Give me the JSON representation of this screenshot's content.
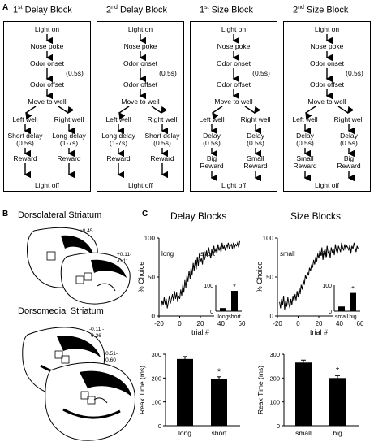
{
  "panel_a": {
    "letter": "A",
    "blocks": [
      {
        "num": "1",
        "sup": "st",
        "title": "Delay Block",
        "common": [
          "Light on",
          "Nose poke",
          "Odor onset",
          "(0.5s)",
          "Odor offset",
          "Move to well"
        ],
        "left": [
          "Left well",
          "Short delay",
          "(0.5s)",
          "Reward"
        ],
        "right": [
          "Right well",
          "Long delay",
          "(1-7s)",
          "Reward"
        ],
        "end": "Light off"
      },
      {
        "num": "2",
        "sup": "nd",
        "title": "Delay Block",
        "common": [
          "Light on",
          "Nose poke",
          "Odor onset",
          "(0.5s)",
          "Odor offset",
          "Move to well"
        ],
        "left": [
          "Left well",
          "Long delay",
          "(1-7s)",
          "Reward"
        ],
        "right": [
          "Right well",
          "Short delay",
          "(0.5s)",
          "Reward"
        ],
        "end": "Light off"
      },
      {
        "num": "1",
        "sup": "st",
        "title": "Size Block",
        "common": [
          "Light on",
          "Nose poke",
          "Odor onset",
          "(0.5s)",
          "Odor offset",
          "Move to well"
        ],
        "left": [
          "Left well",
          "Delay",
          "(0.5s)",
          "Big",
          "Reward"
        ],
        "right": [
          "Right well",
          "Delay",
          "(0.5s)",
          "Small",
          "Reward"
        ],
        "end": "Light off"
      },
      {
        "num": "2",
        "sup": "nd",
        "title": "Size Block",
        "common": [
          "Light on",
          "Nose poke",
          "Odor onset",
          "(0.5s)",
          "Odor offset",
          "Move to well"
        ],
        "left": [
          "Left well",
          "Delay",
          "(0.5s)",
          "Small",
          "Reward"
        ],
        "right": [
          "Right well",
          "Delay",
          "(0.5s)",
          "Big",
          "Reward"
        ],
        "end": "Light off"
      }
    ]
  },
  "panel_b": {
    "letter": "B",
    "dls_title": "Dorsolateral Striatum",
    "dms_title": "Dorsomedial Striatum",
    "dls_labels": [
      "+0.45",
      "+0.11-",
      "-0.11"
    ],
    "dms_labels": [
      "-0.11 -",
      "-0.26",
      "-0.51-",
      "-0.60"
    ]
  },
  "panel_c": {
    "letter": "C",
    "delay_title": "Delay Blocks",
    "size_title": "Size Blocks"
  },
  "chart_data": [
    {
      "type": "line",
      "id": "delay-choice",
      "title": "Delay Blocks",
      "xlabel": "trial #",
      "ylabel": "% Choice",
      "xlim": [
        -20,
        60
      ],
      "ylim": [
        0,
        100
      ],
      "xticks": [
        "-20",
        "0",
        "20",
        "40",
        "60"
      ],
      "yticks": [
        "0",
        "50",
        "100"
      ],
      "annotations": [
        "long",
        "short"
      ],
      "x": [
        -18,
        -17,
        -16,
        -15,
        -14,
        -13,
        -12,
        -11,
        -10,
        -9,
        -8,
        -7,
        -6,
        -5,
        -4,
        -3,
        -2,
        -1,
        0,
        1,
        2,
        3,
        4,
        5,
        6,
        7,
        8,
        9,
        10,
        11,
        12,
        13,
        14,
        15,
        16,
        17,
        18,
        19,
        20,
        21,
        22,
        23,
        24,
        25,
        26,
        27,
        28,
        29,
        30,
        31,
        32,
        33,
        34,
        35,
        36,
        37,
        38,
        39,
        40,
        41,
        42,
        43,
        44,
        45,
        46,
        47,
        48,
        49,
        50,
        51,
        52,
        53,
        54,
        55,
        56,
        57,
        58
      ],
      "series": [
        {
          "values": [
            12,
            20,
            14,
            24,
            15,
            22,
            10,
            18,
            26,
            16,
            22,
            28,
            20,
            32,
            22,
            30,
            18,
            26,
            22,
            34,
            26,
            40,
            30,
            46,
            36,
            52,
            44,
            58,
            48,
            62,
            52,
            68,
            58,
            72,
            60,
            76,
            64,
            80,
            70,
            74,
            66,
            82,
            72,
            78,
            84,
            76,
            88,
            80,
            74,
            86,
            78,
            90,
            82,
            86,
            80,
            92,
            84,
            88,
            82,
            94,
            86,
            90,
            84,
            92,
            88,
            94,
            86,
            90,
            92,
            86,
            94,
            88,
            92,
            90,
            94,
            88,
            96
          ]
        }
      ],
      "inset": {
        "categories": [
          "long",
          "short"
        ],
        "values": [
          12,
          78
        ],
        "yticks": [
          "0",
          "100"
        ],
        "significance": "*"
      }
    },
    {
      "type": "line",
      "id": "size-choice",
      "title": "Size Blocks",
      "xlabel": "trial #",
      "ylabel": "% Choice",
      "xlim": [
        -20,
        60
      ],
      "ylim": [
        0,
        100
      ],
      "xticks": [
        "-20",
        "0",
        "20",
        "40",
        "60"
      ],
      "yticks": [
        "0",
        "50",
        "100"
      ],
      "annotations": [
        "small",
        "big"
      ],
      "x": [
        -18,
        -17,
        -16,
        -15,
        -14,
        -13,
        -12,
        -11,
        -10,
        -9,
        -8,
        -7,
        -6,
        -5,
        -4,
        -3,
        -2,
        -1,
        0,
        1,
        2,
        3,
        4,
        5,
        6,
        7,
        8,
        9,
        10,
        11,
        12,
        13,
        14,
        15,
        16,
        17,
        18,
        19,
        20,
        21,
        22,
        23,
        24,
        25,
        26,
        27,
        28,
        29,
        30,
        31,
        32,
        33,
        34,
        35,
        36,
        37,
        38,
        39,
        40,
        41,
        42,
        43,
        44,
        45,
        46,
        47,
        48,
        49,
        50,
        51,
        52,
        53,
        54,
        55,
        56,
        57,
        58
      ],
      "series": [
        {
          "values": [
            18,
            10,
            22,
            14,
            26,
            8,
            20,
            12,
            24,
            16,
            10,
            22,
            14,
            26,
            18,
            28,
            20,
            32,
            24,
            36,
            28,
            40,
            34,
            46,
            40,
            52,
            48,
            56,
            52,
            62,
            58,
            66,
            62,
            72,
            66,
            76,
            70,
            80,
            74,
            84,
            78,
            88,
            72,
            82,
            86,
            76,
            90,
            80,
            84,
            74,
            88,
            82,
            86,
            78,
            92,
            84,
            80,
            90,
            86,
            82,
            94,
            88,
            84,
            92,
            86,
            90,
            88,
            84,
            92,
            80,
            90,
            86,
            94,
            88,
            82,
            90,
            86
          ]
        }
      ],
      "inset": {
        "categories": [
          "small",
          "big"
        ],
        "values": [
          18,
          70
        ],
        "yticks": [
          "0",
          "100"
        ],
        "significance": "*"
      }
    },
    {
      "type": "bar",
      "id": "delay-rt",
      "ylabel": "Reax Time (ms)",
      "ylim": [
        0,
        300
      ],
      "yticks": [
        "0",
        "100",
        "200",
        "300"
      ],
      "categories": [
        "long",
        "short"
      ],
      "values": [
        280,
        195
      ],
      "significance": "*"
    },
    {
      "type": "bar",
      "id": "size-rt",
      "ylabel": "Reax Time (ms)",
      "ylim": [
        0,
        300
      ],
      "yticks": [
        "0",
        "100",
        "200",
        "300"
      ],
      "categories": [
        "small",
        "big"
      ],
      "values": [
        265,
        200
      ],
      "significance": "*"
    }
  ]
}
